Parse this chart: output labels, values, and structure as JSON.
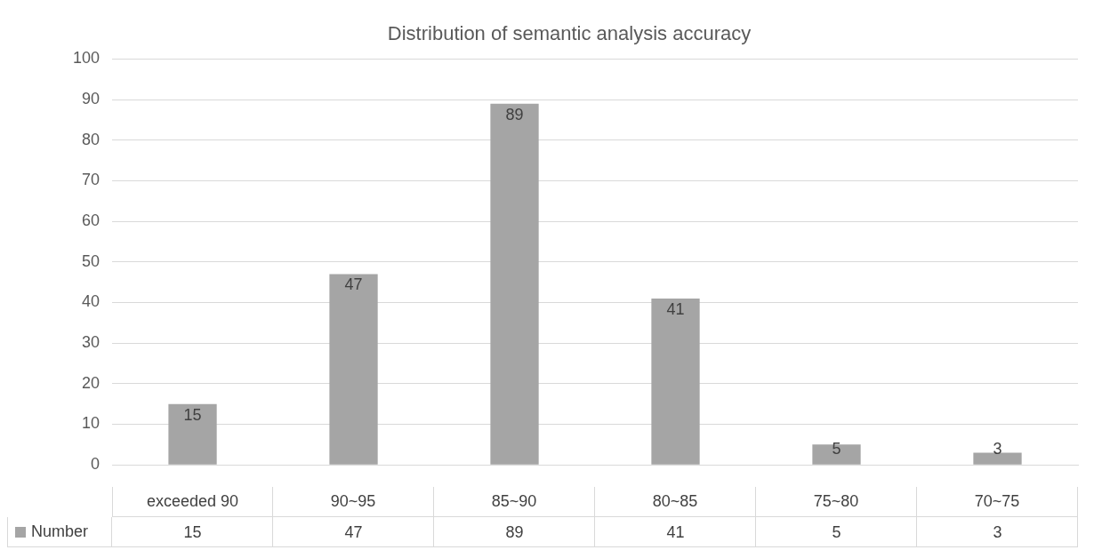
{
  "chart_data": {
    "type": "bar",
    "title": "Distribution of semantic analysis accuracy",
    "categories": [
      "exceeded 90",
      "90~95",
      "85~90",
      "80~85",
      "75~80",
      "70~75"
    ],
    "series": [
      {
        "name": "Number",
        "color": "#a5a5a5",
        "values": [
          15,
          47,
          89,
          41,
          5,
          3
        ]
      }
    ],
    "annotations": [
      "15",
      "47",
      "89",
      "41",
      "5",
      "3"
    ],
    "ylim": [
      0,
      100
    ],
    "yticks": [
      0,
      10,
      20,
      30,
      40,
      50,
      60,
      70,
      80,
      90,
      100
    ],
    "grid": "y",
    "data_labels": true,
    "legend": "bottom"
  }
}
